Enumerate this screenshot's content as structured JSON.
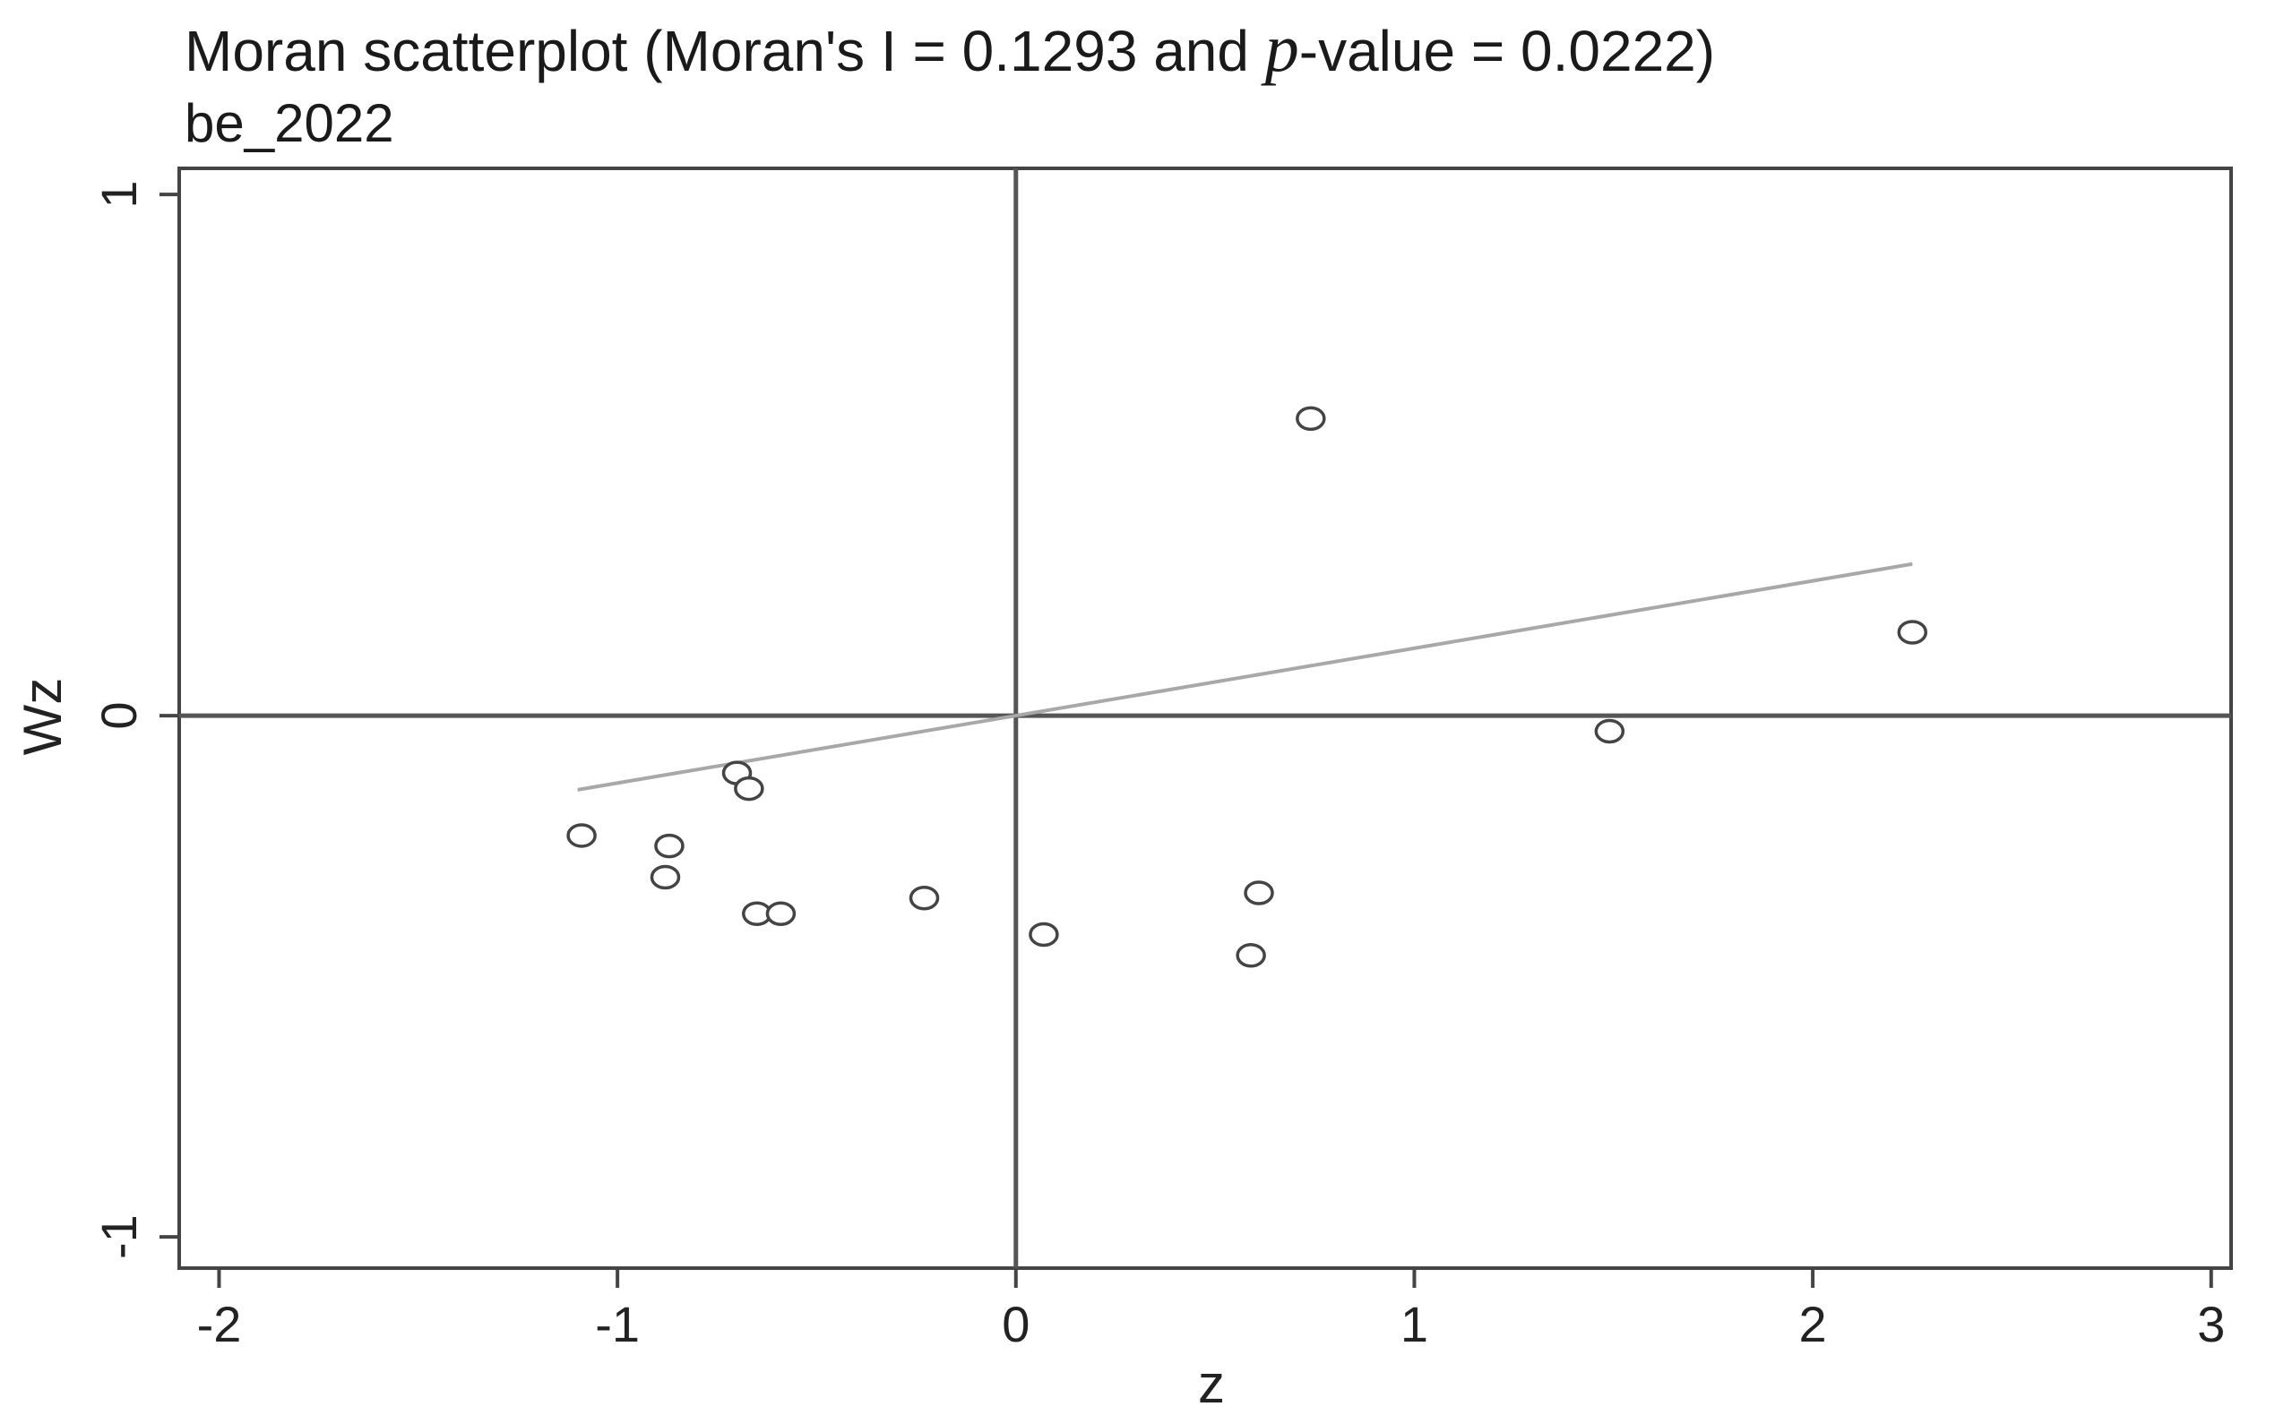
{
  "chart_data": {
    "type": "scatter",
    "title_prefix": "Moran scatterplot (Moran's I = 0.1293 and ",
    "title_p": "p",
    "title_suffix": "-value = 0.0222)",
    "subtitle": "be_2022",
    "xlabel": "z",
    "ylabel": "Wz",
    "xlim": [
      -2.1,
      3.05
    ],
    "ylim": [
      -1.06,
      1.05
    ],
    "x_ticks": [
      {
        "value": -2,
        "label": "-2"
      },
      {
        "value": -1,
        "label": "-1"
      },
      {
        "value": 0,
        "label": "0"
      },
      {
        "value": 1,
        "label": "1"
      },
      {
        "value": 2,
        "label": "2"
      },
      {
        "value": 3,
        "label": "3"
      }
    ],
    "y_ticks": [
      {
        "value": -1,
        "label": "-1"
      },
      {
        "value": 0,
        "label": "0"
      },
      {
        "value": 1,
        "label": "1"
      }
    ],
    "grid": false,
    "reference_lines": {
      "x": 0,
      "y": 0
    },
    "fit_line": {
      "slope": 0.1293,
      "x_range": [
        -1.1,
        2.25
      ]
    },
    "points": [
      {
        "x": 0.74,
        "y": 0.57
      },
      {
        "x": 2.25,
        "y": 0.16
      },
      {
        "x": 1.49,
        "y": -0.03
      },
      {
        "x": -0.7,
        "y": -0.11
      },
      {
        "x": -0.67,
        "y": -0.14
      },
      {
        "x": -1.09,
        "y": -0.23
      },
      {
        "x": -0.87,
        "y": -0.25
      },
      {
        "x": -0.88,
        "y": -0.31
      },
      {
        "x": -0.65,
        "y": -0.38
      },
      {
        "x": -0.59,
        "y": -0.38
      },
      {
        "x": -0.23,
        "y": -0.35
      },
      {
        "x": 0.07,
        "y": -0.42
      },
      {
        "x": 0.61,
        "y": -0.34
      },
      {
        "x": 0.59,
        "y": -0.46
      }
    ],
    "colors": {
      "frame": "#444444",
      "points": "#444444",
      "fit_line": "#a8a8a8",
      "reference": "#555555"
    }
  }
}
